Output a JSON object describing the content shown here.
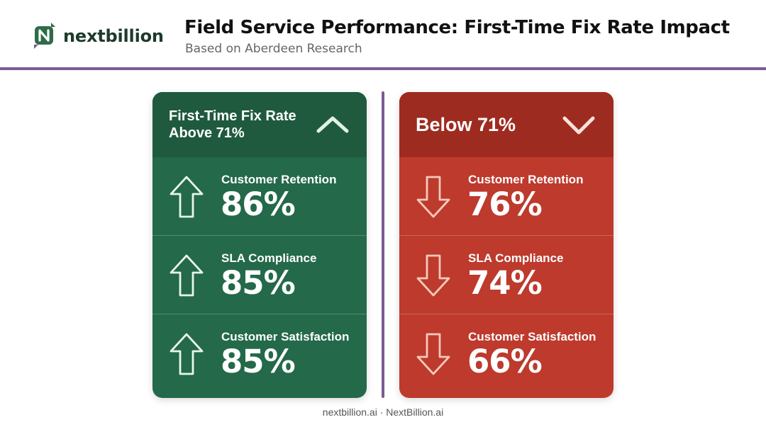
{
  "header": {
    "brand": "nextbillion",
    "logo_icon": "nextbillion-logo-icon",
    "title": "Field Service Performance: First-Time Fix Rate Impact",
    "subtitle": "Based on Aberdeen Research"
  },
  "colors": {
    "accent_rule": "#7b5a93",
    "green_card": "#23694a",
    "green_header": "#1f5a3e",
    "red_card": "#bd3a2d",
    "red_header": "#9e2b20"
  },
  "panels": [
    {
      "heading": "First-Time Fix Rate Above 71%",
      "heading_icon": "chevron-up-icon",
      "metric_icon": "arrow-up-icon",
      "metrics": [
        {
          "label": "Customer Retention",
          "value": "86%"
        },
        {
          "label": "SLA Compliance",
          "value": "85%"
        },
        {
          "label": "Customer Satisfaction",
          "value": "85%"
        }
      ]
    },
    {
      "heading": "Below 71%",
      "heading_icon": "chevron-down-icon",
      "metric_icon": "arrow-down-icon",
      "metrics": [
        {
          "label": "Customer Retention",
          "value": "76%"
        },
        {
          "label": "SLA Compliance",
          "value": "74%"
        },
        {
          "label": "Customer Satisfaction",
          "value": "66%"
        }
      ]
    }
  ],
  "footer": "nextbillion.ai · NextBillion.ai"
}
